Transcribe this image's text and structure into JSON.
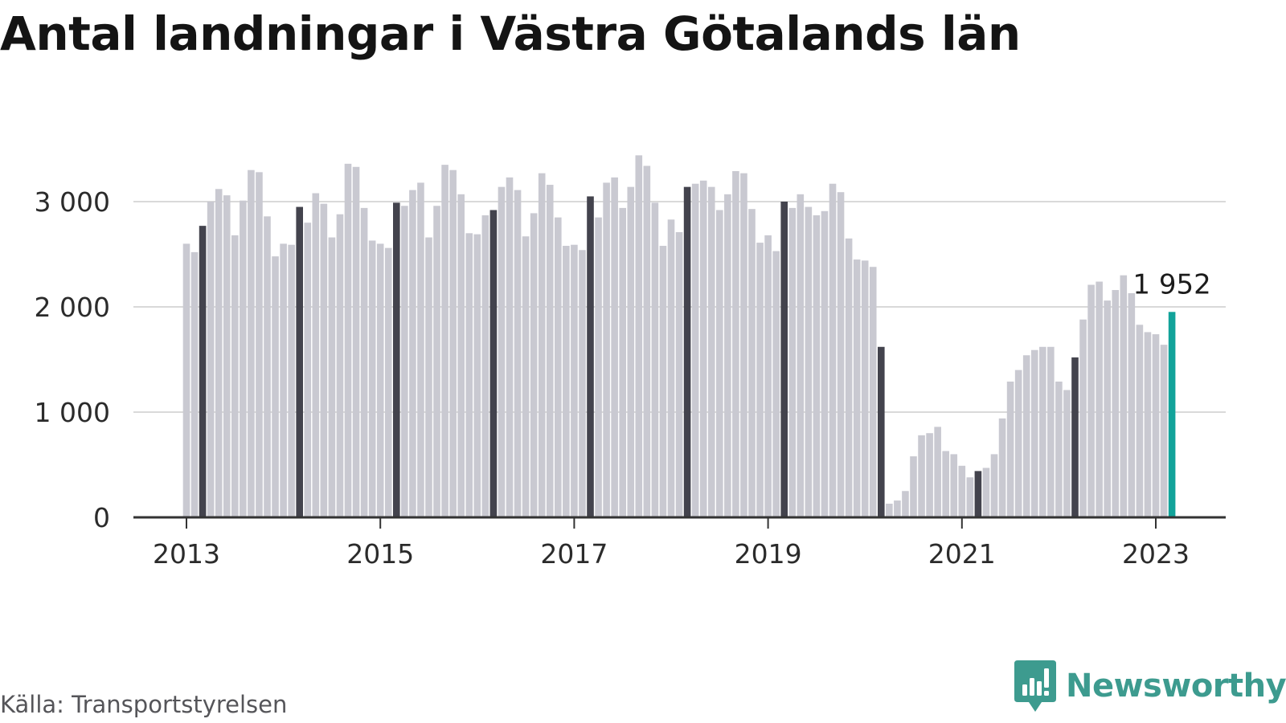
{
  "chart_data": {
    "type": "bar",
    "title": "Antal landningar i Västra Götalands län",
    "xlabel": "",
    "ylabel": "",
    "source": "Källa: Transportstyrelsen",
    "ylim": [
      0,
      3500
    ],
    "yticks": [
      0,
      1000,
      2000,
      3000
    ],
    "ytick_labels": [
      "0",
      "1 000",
      "2 000",
      "3 000"
    ],
    "xtick_labels": [
      "2013",
      "2015",
      "2017",
      "2019",
      "2021",
      "2023"
    ],
    "grid": true,
    "start": "2013-01",
    "interval": "month",
    "highlight_month": 3,
    "callout": {
      "label": "1 952",
      "value": 1952,
      "month": "2023-03"
    },
    "colors": {
      "regular": "#c9c9d1",
      "march": "#43434d",
      "latest": "#12a39a"
    },
    "values": [
      2600,
      2520,
      2770,
      3000,
      3120,
      3060,
      2680,
      3010,
      3300,
      3280,
      2860,
      2480,
      2600,
      2590,
      2950,
      2800,
      3080,
      2980,
      2660,
      2880,
      3360,
      3330,
      2940,
      2630,
      2600,
      2560,
      2990,
      2960,
      3110,
      3180,
      2660,
      2960,
      3350,
      3300,
      3070,
      2700,
      2690,
      2870,
      2920,
      3140,
      3230,
      3110,
      2670,
      2890,
      3270,
      3160,
      2850,
      2580,
      2590,
      2540,
      3050,
      2850,
      3180,
      3230,
      2940,
      3140,
      3440,
      3340,
      2990,
      2580,
      2830,
      2710,
      3140,
      3170,
      3200,
      3140,
      2920,
      3070,
      3290,
      3270,
      2930,
      2610,
      2680,
      2530,
      3000,
      2940,
      3070,
      2950,
      2870,
      2910,
      3170,
      3090,
      2650,
      2450,
      2440,
      2380,
      1620,
      130,
      160,
      250,
      580,
      780,
      800,
      860,
      630,
      600,
      490,
      380,
      440,
      470,
      600,
      940,
      1290,
      1400,
      1540,
      1590,
      1620,
      1620,
      1290,
      1210,
      1520,
      1880,
      2210,
      2240,
      2060,
      2160,
      2300,
      2130,
      1830,
      1760,
      1740,
      1640,
      1952
    ]
  },
  "brand": {
    "name": "Newsworthy",
    "logo": "chart-logo-icon",
    "color": "#3d9b8f"
  }
}
